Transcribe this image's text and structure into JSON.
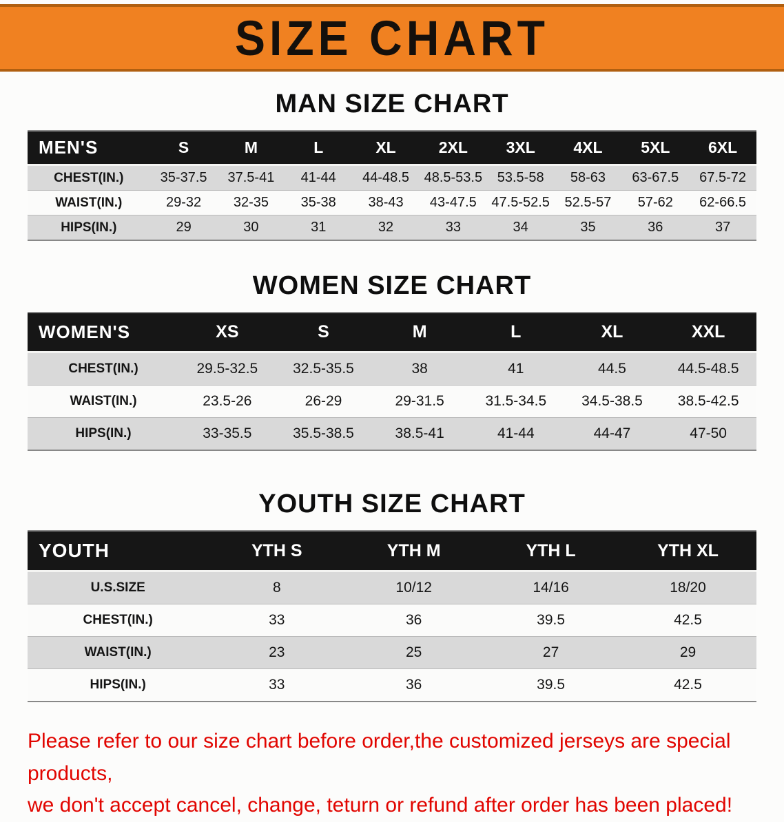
{
  "banner": {
    "title": "SIZE CHART",
    "bg_color": "#f08121",
    "text_color": "#14100c"
  },
  "sections": [
    {
      "id": "men",
      "heading": "MAN SIZE CHART",
      "table": {
        "corner": "MEN'S",
        "columns": [
          "S",
          "M",
          "L",
          "XL",
          "2XL",
          "3XL",
          "4XL",
          "5XL",
          "6XL"
        ],
        "rows": [
          {
            "label": "CHEST(IN.)",
            "values": [
              "35-37.5",
              "37.5-41",
              "41-44",
              "44-48.5",
              "48.5-53.5",
              "53.5-58",
              "58-63",
              "63-67.5",
              "67.5-72"
            ]
          },
          {
            "label": "WAIST(IN.)",
            "values": [
              "29-32",
              "32-35",
              "35-38",
              "38-43",
              "43-47.5",
              "47.5-52.5",
              "52.5-57",
              "57-62",
              "62-66.5"
            ]
          },
          {
            "label": "HIPS(IN.)",
            "values": [
              "29",
              "30",
              "31",
              "32",
              "33",
              "34",
              "35",
              "36",
              "37"
            ]
          }
        ]
      }
    },
    {
      "id": "women",
      "heading": "WOMEN SIZE CHART",
      "table": {
        "corner": "WOMEN'S",
        "columns": [
          "XS",
          "S",
          "M",
          "L",
          "XL",
          "XXL"
        ],
        "rows": [
          {
            "label": "CHEST(IN.)",
            "values": [
              "29.5-32.5",
              "32.5-35.5",
              "38",
              "41",
              "44.5",
              "44.5-48.5"
            ]
          },
          {
            "label": "WAIST(IN.)",
            "values": [
              "23.5-26",
              "26-29",
              "29-31.5",
              "31.5-34.5",
              "34.5-38.5",
              "38.5-42.5"
            ]
          },
          {
            "label": "HIPS(IN.)",
            "values": [
              "33-35.5",
              "35.5-38.5",
              "38.5-41",
              "41-44",
              "44-47",
              "47-50"
            ]
          }
        ]
      }
    },
    {
      "id": "youth",
      "heading": "YOUTH SIZE CHART",
      "table": {
        "corner": "YOUTH",
        "columns": [
          "YTH S",
          "YTH M",
          "YTH L",
          "YTH XL"
        ],
        "rows": [
          {
            "label": "U.S.SIZE",
            "values": [
              "8",
              "10/12",
              "14/16",
              "18/20"
            ]
          },
          {
            "label": "CHEST(IN.)",
            "values": [
              "33",
              "36",
              "39.5",
              "42.5"
            ]
          },
          {
            "label": "WAIST(IN.)",
            "values": [
              "23",
              "25",
              "27",
              "29"
            ]
          },
          {
            "label": "HIPS(IN.)",
            "values": [
              "33",
              "36",
              "39.5",
              "42.5"
            ]
          }
        ]
      }
    }
  ],
  "disclaimer": {
    "line1": "Please refer to our size chart before order,the customized jerseys are special products,",
    "line2": "we don't accept cancel, change, teturn or refund after order has been placed!",
    "color": "#e10500"
  }
}
